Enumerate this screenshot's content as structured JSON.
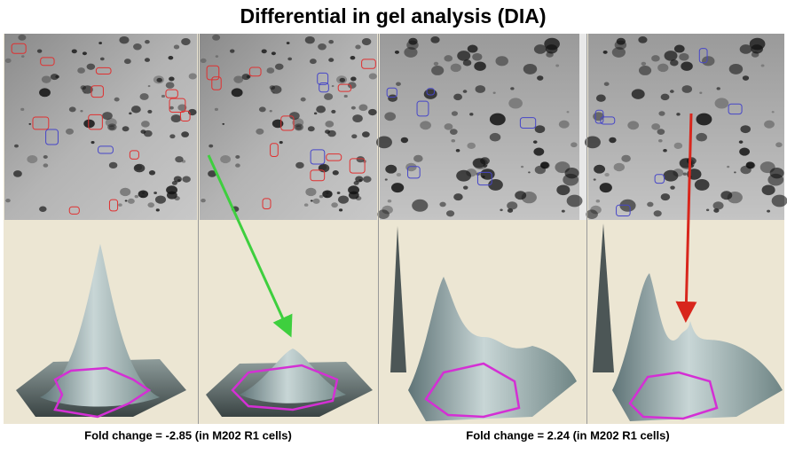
{
  "figure": {
    "title": "Differential in gel analysis (DIA)",
    "captions": [
      "Fold change = -2.85  (in M202 R1 cells)",
      "Fold change = 2.24  (in M202 R1 cells)"
    ]
  }
}
